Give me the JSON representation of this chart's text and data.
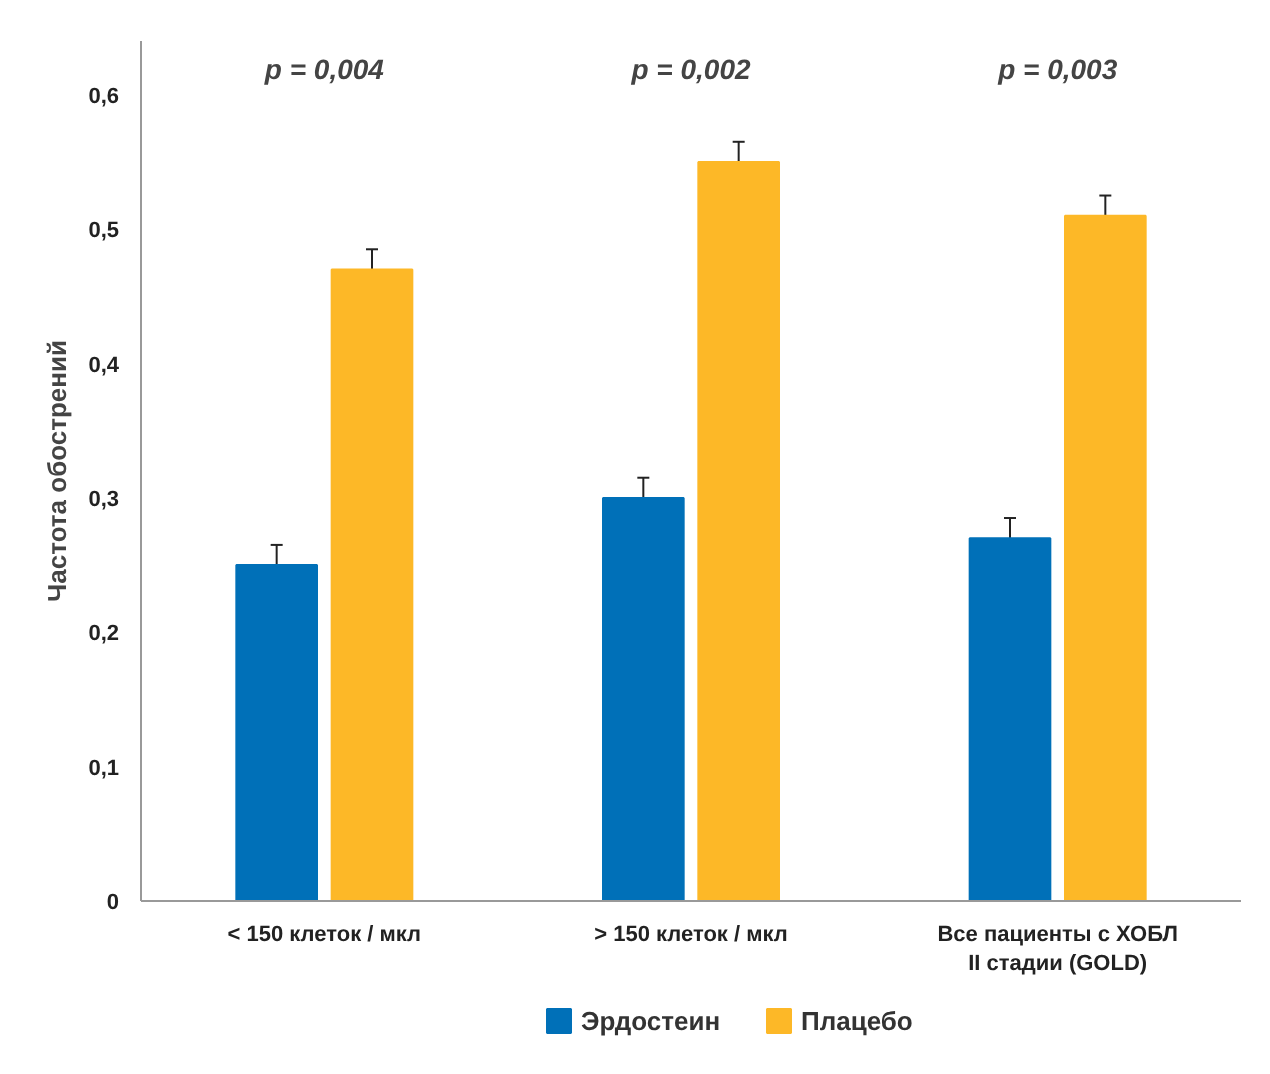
{
  "chart_data": {
    "type": "bar",
    "ylabel": "Частота обострений",
    "categories": [
      "< 150 клеток / мкл",
      "> 150 клеток / мкл",
      "Все пациенты с ХОБЛ\nII стадии (GOLD)"
    ],
    "series": [
      {
        "name": "Эрдостеин",
        "color": "#0070b8",
        "values": [
          0.25,
          0.3,
          0.27
        ],
        "errors": [
          0.015,
          0.015,
          0.015
        ]
      },
      {
        "name": "Плацебо",
        "color": "#fdb827",
        "values": [
          0.47,
          0.55,
          0.51
        ],
        "errors": [
          0.015,
          0.015,
          0.015
        ]
      }
    ],
    "ylim": [
      0,
      0.64
    ],
    "yticks": [
      {
        "value": 0,
        "label": "0"
      },
      {
        "value": 0.1,
        "label": "0,1"
      },
      {
        "value": 0.2,
        "label": "0,2"
      },
      {
        "value": 0.3,
        "label": "0,3"
      },
      {
        "value": 0.4,
        "label": "0,4"
      },
      {
        "value": 0.5,
        "label": "0,5"
      },
      {
        "value": 0.6,
        "label": "0,6"
      }
    ],
    "annotations": [
      "p = 0,004",
      "p = 0,002",
      "p = 0,003"
    ],
    "grid": false,
    "legend": "bottom"
  }
}
